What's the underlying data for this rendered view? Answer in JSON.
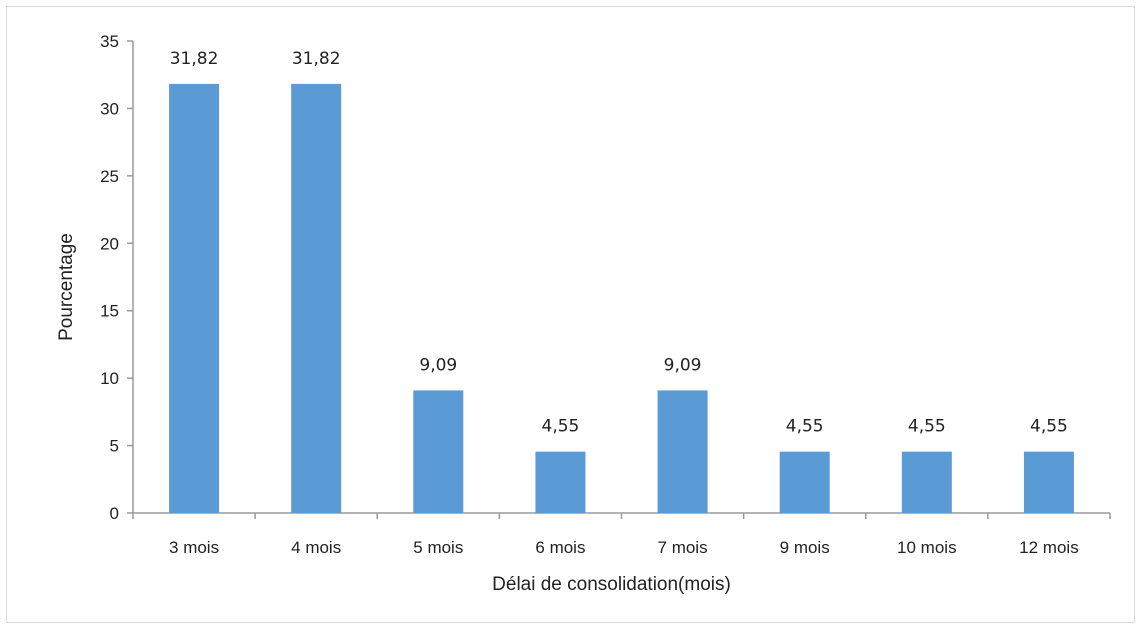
{
  "chart_data": {
    "type": "bar",
    "categories": [
      "3 mois",
      "4 mois",
      "5 mois",
      "6 mois",
      "7 mois",
      "9 mois",
      "10 mois",
      "12 mois"
    ],
    "values": [
      31.82,
      31.82,
      9.09,
      4.55,
      9.09,
      4.55,
      4.55,
      4.55
    ],
    "data_labels": [
      "31,82",
      "31,82",
      "9,09",
      "4,55",
      "9,09",
      "4,55",
      "4,55",
      "4,55"
    ],
    "xlabel": "Délai de consolidation(mois)",
    "ylabel": "Pourcentage",
    "ylim": [
      0,
      35
    ],
    "yticks": [
      0,
      5,
      10,
      15,
      20,
      25,
      30,
      35
    ],
    "grid": false,
    "legend": "none",
    "bar_color": "#5b9bd5"
  }
}
